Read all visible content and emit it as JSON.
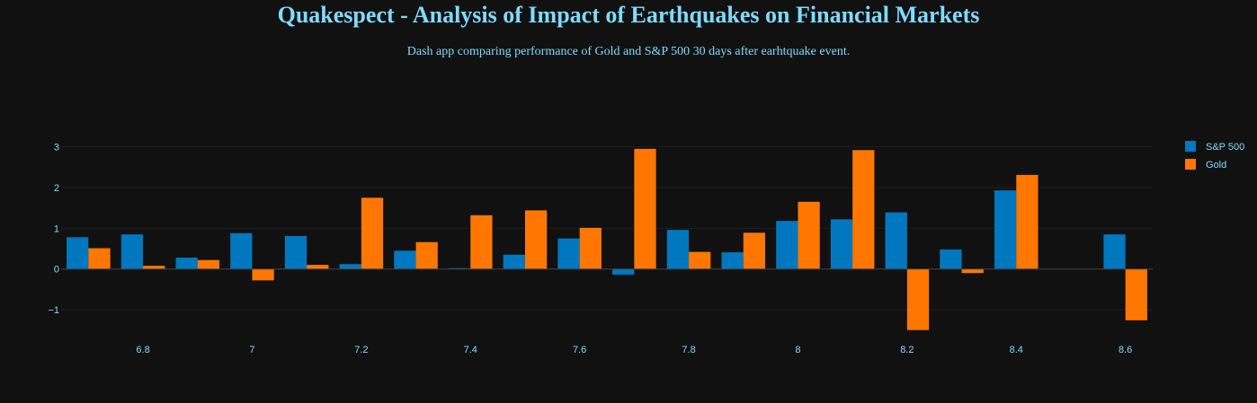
{
  "header": {
    "title": "Quakespect - Analysis of Impact of Earthquakes on Financial Markets",
    "subtitle": "Dash app comparing performance of Gold and S&P 500 30 days after earhtquake event."
  },
  "colors": {
    "background": "#111111",
    "text": "#7FDBFF",
    "grid": "#1e1e1e",
    "zero_line": "#444444",
    "sp500": "#0077be",
    "gold": "#ff7700"
  },
  "chart_data": {
    "type": "bar",
    "title": "",
    "xlabel": "",
    "ylabel": "",
    "x": [
      6.7,
      6.8,
      6.9,
      7.0,
      7.1,
      7.2,
      7.3,
      7.4,
      7.5,
      7.6,
      7.7,
      7.8,
      7.9,
      8.0,
      8.1,
      8.2,
      8.3,
      8.4,
      8.5,
      8.6
    ],
    "series": [
      {
        "name": "S&P 500",
        "color": "#0077be",
        "values": [
          0.78,
          0.85,
          0.28,
          0.88,
          0.81,
          0.12,
          0.45,
          0.02,
          0.35,
          0.75,
          -0.14,
          0.96,
          0.41,
          1.18,
          1.22,
          1.39,
          0.48,
          1.93,
          null,
          0.85
        ]
      },
      {
        "name": "Gold",
        "color": "#ff7700",
        "values": [
          0.51,
          0.08,
          0.22,
          -0.28,
          0.1,
          1.75,
          0.66,
          1.32,
          1.44,
          1.01,
          2.95,
          0.42,
          0.89,
          1.65,
          2.92,
          -1.5,
          -0.1,
          2.31,
          null,
          -1.26
        ]
      }
    ],
    "xticks": [
      "6.8",
      "7",
      "7.2",
      "7.4",
      "7.6",
      "7.8",
      "8",
      "8.2",
      "8.4",
      "8.6"
    ],
    "xtick_values": [
      6.8,
      7.0,
      7.2,
      7.4,
      7.6,
      7.8,
      8.0,
      8.2,
      8.4,
      8.6
    ],
    "yticks": [
      "−1",
      "0",
      "1",
      "2",
      "3"
    ],
    "ytick_values": [
      -1,
      0,
      1,
      2,
      3
    ],
    "xlim": [
      6.65,
      8.65
    ],
    "ylim": [
      -1.55,
      3.3
    ],
    "grid": true,
    "legend_position": "top-right"
  }
}
